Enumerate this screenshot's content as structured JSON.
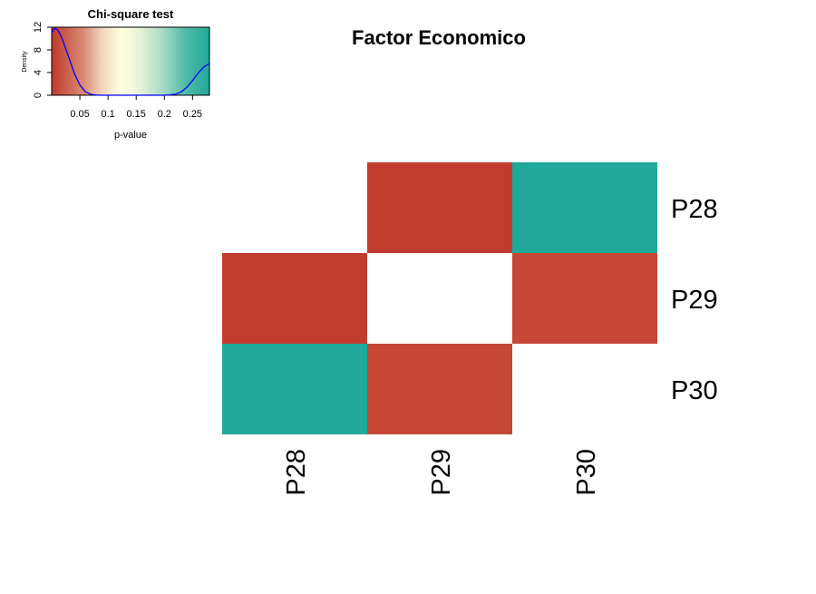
{
  "chart_data": {
    "type": "heatmap",
    "title": "Factor Economico",
    "rows": [
      "P28",
      "P29",
      "P30"
    ],
    "cols": [
      "P28",
      "P29",
      "P30"
    ],
    "values": [
      [
        null,
        0.002,
        0.285
      ],
      [
        0.002,
        null,
        0.01
      ],
      [
        0.285,
        0.01,
        null
      ]
    ],
    "color_key": {
      "title": "Chi-square test",
      "xlabel": "p-value",
      "ylabel": "Density",
      "xlim": [
        0.0,
        0.28
      ],
      "ylim": [
        0,
        12
      ],
      "x_ticks": [
        "0.05",
        "0.1",
        "0.15",
        "0.2",
        "0.25"
      ],
      "x_tick_values": [
        0.05,
        0.1,
        0.15,
        0.2,
        0.25
      ],
      "y_ticks": [
        "0",
        "4",
        "8",
        "12"
      ],
      "y_tick_values": [
        0,
        4,
        8,
        12
      ],
      "colors": {
        "low": "#c0392b",
        "mid": "#ffffe0",
        "high": "#20a89a",
        "density_line": "#0000ff"
      },
      "density_curve": {
        "x": [
          0.0,
          0.005,
          0.01,
          0.015,
          0.02,
          0.03,
          0.04,
          0.05,
          0.06,
          0.07,
          0.08,
          0.09,
          0.1,
          0.2,
          0.21,
          0.22,
          0.23,
          0.24,
          0.25,
          0.26,
          0.27,
          0.28
        ],
        "y": [
          11.0,
          11.8,
          11.6,
          10.8,
          9.6,
          6.8,
          3.9,
          1.8,
          0.6,
          0.15,
          0.03,
          0.0,
          0.0,
          0.0,
          0.05,
          0.2,
          0.6,
          1.4,
          2.6,
          3.9,
          5.0,
          5.6
        ]
      }
    }
  }
}
